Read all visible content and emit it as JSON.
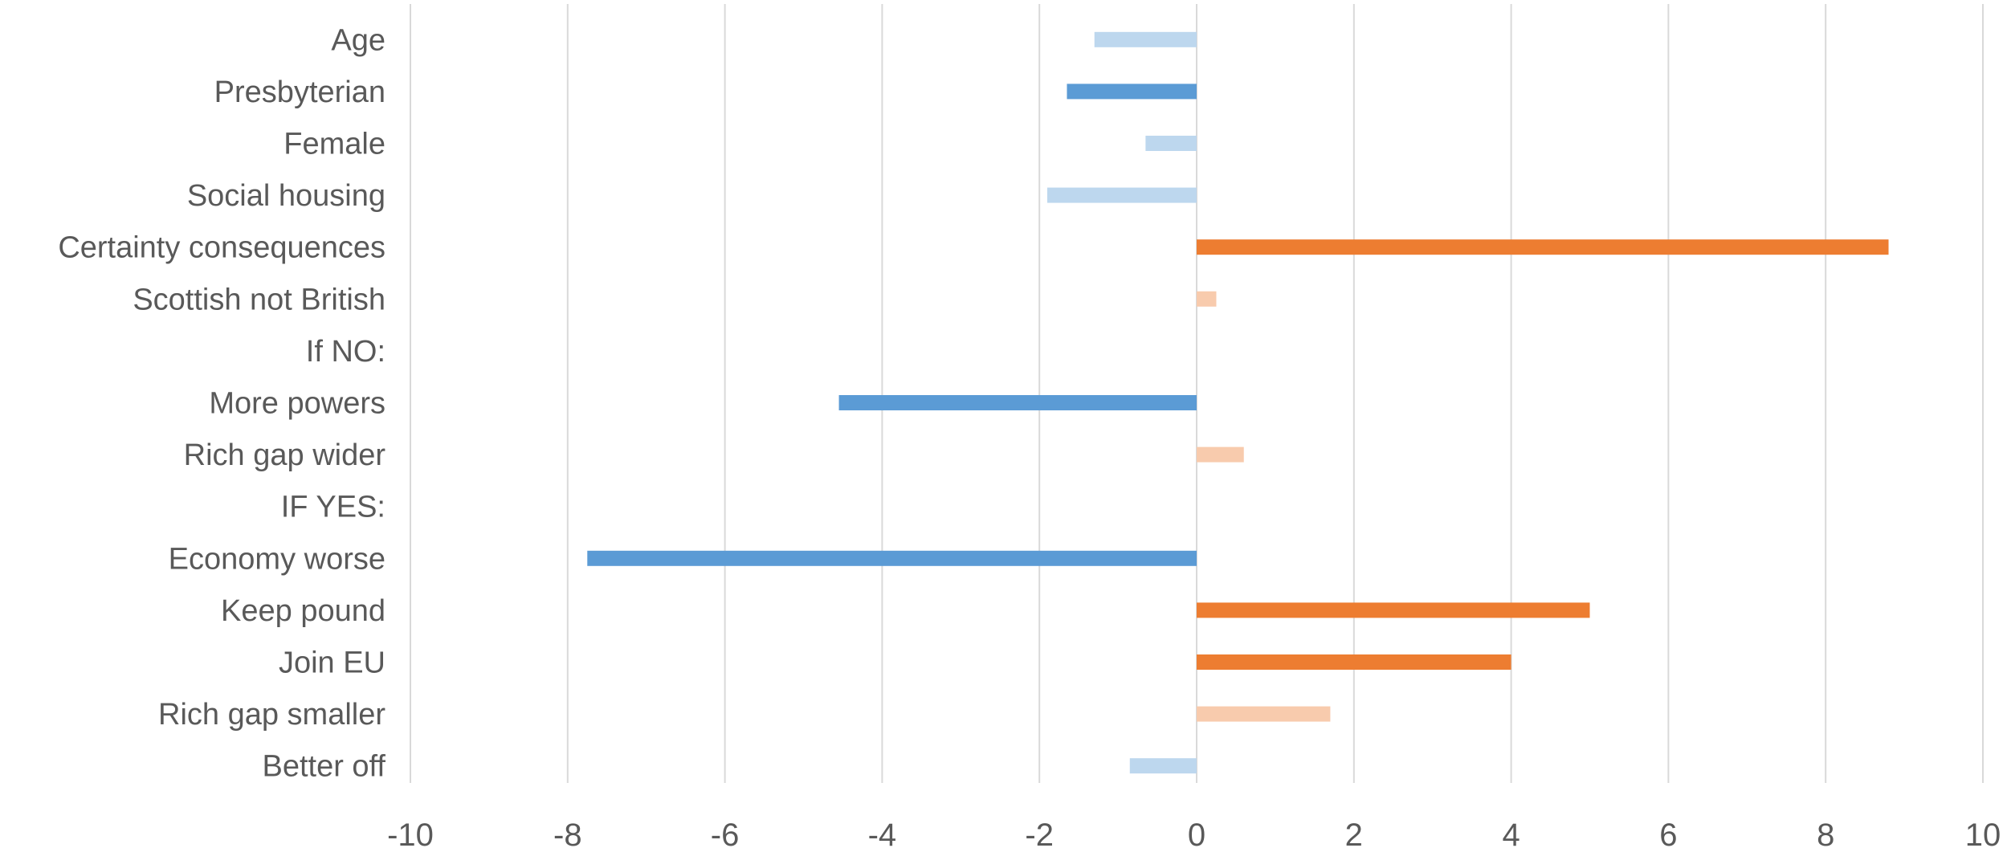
{
  "chart_data": {
    "type": "bar",
    "orientation": "horizontal",
    "title": "",
    "xlabel": "",
    "ylabel": "",
    "xlim": [
      -10,
      10
    ],
    "x_ticks": [
      -10,
      -8,
      -6,
      -4,
      -2,
      0,
      2,
      4,
      6,
      8,
      10
    ],
    "grid": "vertical",
    "legend": "none",
    "categories": [
      "Age",
      "Presbyterian",
      "Female",
      "Social housing",
      "Certainty consequences",
      "Scottish not British",
      "If NO:",
      "More powers",
      "Rich gap wider",
      "IF YES:",
      "Economy worse",
      "Keep pound",
      "Join EU",
      "Rich gap smaller",
      "Better off"
    ],
    "values": [
      -1.3,
      -1.65,
      -0.65,
      -1.9,
      8.8,
      0.25,
      null,
      -4.55,
      0.6,
      null,
      -7.75,
      5.0,
      4.0,
      1.7,
      -0.85
    ],
    "bar_colors": [
      "#bdd7ee",
      "#5b9bd5",
      "#bdd7ee",
      "#bdd7ee",
      "#ed7d31",
      "#f8cbad",
      null,
      "#5b9bd5",
      "#f8cbad",
      null,
      "#5b9bd5",
      "#ed7d31",
      "#ed7d31",
      "#f8cbad",
      "#bdd7ee"
    ],
    "colors": {
      "negative_strong": "#5b9bd5",
      "negative_weak": "#bdd7ee",
      "positive_strong": "#ed7d31",
      "positive_weak": "#f8cbad",
      "grid": "#d9d9d9",
      "text": "#595959"
    }
  }
}
